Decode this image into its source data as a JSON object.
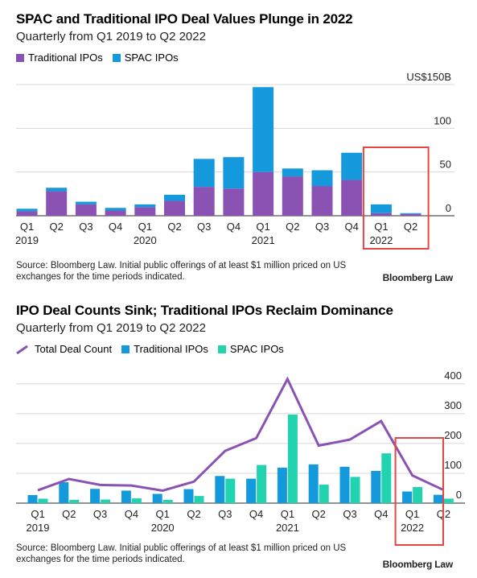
{
  "chart_data": [
    {
      "type": "bar",
      "stacked": true,
      "title": "SPAC and Traditional IPO Deal Values Plunge in 2022",
      "subtitle": "Quarterly from Q1 2019 to Q2 2022",
      "categories": [
        "Q1",
        "Q2",
        "Q3",
        "Q4",
        "Q1",
        "Q2",
        "Q3",
        "Q4",
        "Q1",
        "Q2",
        "Q3",
        "Q4",
        "Q1",
        "Q2"
      ],
      "year_labels": [
        "2019",
        "",
        "",
        "",
        "2020",
        "",
        "",
        "",
        "2021",
        "",
        "",
        "",
        "2022",
        ""
      ],
      "series": [
        {
          "name": "Traditional IPOs",
          "color": "#8a52b3",
          "values": [
            5,
            28,
            13,
            6,
            10,
            17,
            33,
            31,
            50,
            45,
            34,
            41,
            3,
            2
          ]
        },
        {
          "name": "SPAC IPOs",
          "color": "#1499dd",
          "values": [
            3,
            4,
            3,
            3,
            3,
            7,
            32,
            36,
            97,
            9,
            18,
            31,
            10,
            1
          ]
        }
      ],
      "ylim": [
        0,
        150
      ],
      "yticks": [
        0,
        50,
        100,
        150
      ],
      "ytick_labels": [
        "0",
        "50",
        "100",
        "US$150B"
      ],
      "legend_position": "top-left",
      "grid": true,
      "highlight": {
        "from": "Q1 2022",
        "to": "Q2 2022",
        "color": "#e64545"
      },
      "source": "Source: Bloomberg Law. Initial public offerings of at least $1 million priced on US exchanges for the time periods indicated.",
      "brand": "Bloomberg Law"
    },
    {
      "type": "bar",
      "title": "IPO Deal Counts Sink; Traditional IPOs Reclaim Dominance",
      "subtitle": "Quarterly from Q1 2019 to Q2 2022",
      "categories": [
        "Q1",
        "Q2",
        "Q3",
        "Q4",
        "Q1",
        "Q2",
        "Q3",
        "Q4",
        "Q1",
        "Q2",
        "Q3",
        "Q4",
        "Q1",
        "Q2"
      ],
      "year_labels": [
        "2019",
        "",
        "",
        "",
        "2020",
        "",
        "",
        "",
        "2021",
        "",
        "",
        "",
        "2022",
        ""
      ],
      "series": [
        {
          "name": "Total Deal Count",
          "type": "line",
          "color": "#8a52b3",
          "values": [
            43,
            81,
            61,
            59,
            42,
            72,
            175,
            218,
            416,
            193,
            213,
            275,
            93,
            44
          ]
        },
        {
          "name": "Traditional IPOs",
          "type": "bar",
          "color": "#1499dd",
          "values": [
            27,
            70,
            48,
            42,
            31,
            47,
            91,
            82,
            119,
            130,
            122,
            108,
            39,
            28
          ]
        },
        {
          "name": "SPAC IPOs",
          "type": "bar",
          "color": "#22d3b0",
          "values": [
            15,
            11,
            12,
            16,
            11,
            24,
            82,
            128,
            297,
            62,
            88,
            167,
            54,
            15
          ]
        }
      ],
      "ylim": [
        0,
        400
      ],
      "yticks": [
        0,
        100,
        200,
        300,
        400
      ],
      "ytick_labels": [
        "0",
        "100",
        "200",
        "300",
        "400"
      ],
      "legend_position": "top-left",
      "grid": true,
      "highlight": {
        "from": "Q1 2022",
        "to": "Q2 2022",
        "color": "#e64545"
      },
      "source": "Source: Bloomberg Law. Initial public offerings of at least $1 million priced on US exchanges for the time periods indicated.",
      "brand": "Bloomberg Law"
    }
  ]
}
